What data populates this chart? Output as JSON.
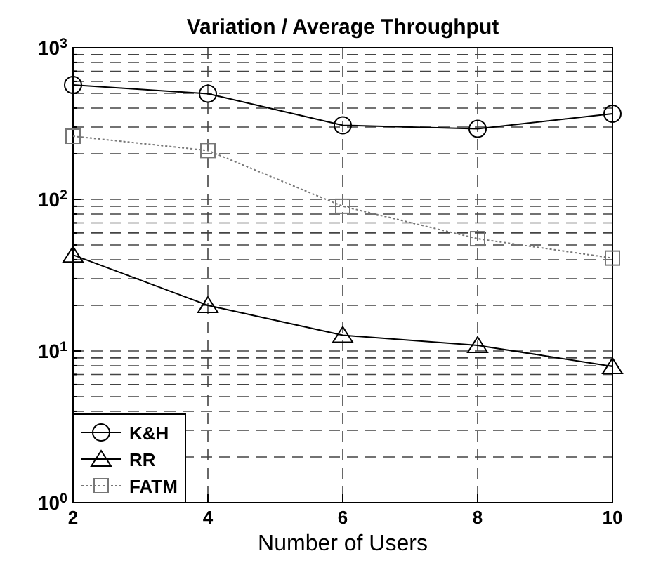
{
  "chart_data": {
    "type": "line",
    "title": "Variation / Average Throughput",
    "xlabel": "Number of Users",
    "x": [
      2,
      4,
      6,
      8,
      10
    ],
    "series": [
      {
        "name": "K&H",
        "color": "#000000",
        "marker": "circle",
        "line_style": "solid",
        "values": [
          568,
          497,
          308,
          292,
          367
        ]
      },
      {
        "name": "RR",
        "color": "#000000",
        "marker": "triangle",
        "line_style": "solid",
        "values": [
          43,
          20,
          12.7,
          10.9,
          7.9
        ]
      },
      {
        "name": "FATM",
        "color": "#777777",
        "marker": "square",
        "line_style": "dotted",
        "values": [
          261,
          210,
          90,
          55,
          41
        ]
      }
    ],
    "log": "y",
    "xlim": [
      2,
      10
    ],
    "xticks": [
      2,
      4,
      6,
      8,
      10
    ],
    "ylim": [
      1,
      1000
    ],
    "yticks": [
      {
        "value": 1,
        "label": "10$^{0}$"
      },
      {
        "value": 2,
        "label": null
      },
      {
        "value": 3,
        "label": null
      },
      {
        "value": 4,
        "label": null
      },
      {
        "value": 5,
        "label": null
      },
      {
        "value": 6,
        "label": null
      },
      {
        "value": 7,
        "label": null
      },
      {
        "value": 8,
        "label": null
      },
      {
        "value": 9,
        "label": null
      },
      {
        "value": 10,
        "label": "10$^{1}$"
      },
      {
        "value": 20,
        "label": null
      },
      {
        "value": 30,
        "label": null
      },
      {
        "value": 40,
        "label": null
      },
      {
        "value": 50,
        "label": null
      },
      {
        "value": 60,
        "label": null
      },
      {
        "value": 70,
        "label": null
      },
      {
        "value": 80,
        "label": null
      },
      {
        "value": 90,
        "label": null
      },
      {
        "value": 100,
        "label": "10$^{2}$"
      },
      {
        "value": 200,
        "label": null
      },
      {
        "value": 300,
        "label": null
      },
      {
        "value": 400,
        "label": null
      },
      {
        "value": 500,
        "label": null
      },
      {
        "value": 600,
        "label": null
      },
      {
        "value": 700,
        "label": null
      },
      {
        "value": 800,
        "label": null
      },
      {
        "value": 900,
        "label": null
      },
      {
        "value": 1000,
        "label": "10$^{3}$"
      }
    ],
    "grid": true,
    "legend": "bottom left"
  }
}
